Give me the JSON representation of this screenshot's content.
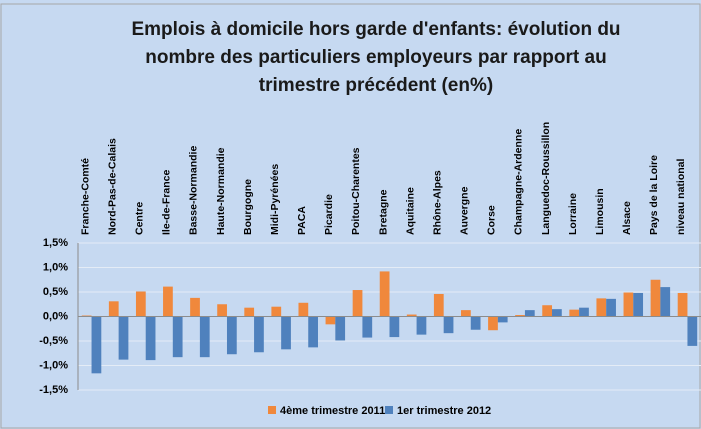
{
  "chart_data": {
    "type": "bar",
    "title": [
      "Emplois à domicile hors garde d'enfants:  évolution du",
      "nombre des particuliers employeurs par rapport au",
      "trimestre précédent (en%)"
    ],
    "categories": [
      "Franche-Comté",
      "Nord-Pas-de-Calais",
      "Centre",
      "Ile-de-France",
      "Basse-Normandie",
      "Haute-Normandie",
      "Bourgogne",
      "Midi-Pyrénées",
      "PACA",
      "Picardie",
      "Poitou-Charentes",
      "Bretagne",
      "Aquitaine",
      "Rhône-Alpes",
      "Auvergne",
      "Corse",
      "Champagne-Ardenne",
      "Languedoc-Roussillon",
      "Lorraine",
      "Limousin",
      "Alsace",
      "Pays de la Loire",
      "niveau national"
    ],
    "series": [
      {
        "name": "4ème trimestre 2011",
        "color": "#f0883c",
        "values": [
          0.02,
          0.31,
          0.51,
          0.61,
          0.38,
          0.25,
          0.18,
          0.2,
          0.28,
          -0.16,
          0.54,
          0.92,
          0.04,
          0.46,
          0.13,
          -0.28,
          0.03,
          0.23,
          0.14,
          0.37,
          0.49,
          0.75,
          0.48
        ]
      },
      {
        "name": "1er trimestre 2012",
        "color": "#4f81bd",
        "values": [
          -1.16,
          -0.88,
          -0.89,
          -0.83,
          -0.83,
          -0.77,
          -0.73,
          -0.67,
          -0.63,
          -0.49,
          -0.43,
          -0.42,
          -0.37,
          -0.34,
          -0.27,
          -0.12,
          0.13,
          0.15,
          0.18,
          0.36,
          0.48,
          0.6,
          -0.6
        ]
      }
    ],
    "ylim": [
      -1.5,
      1.5
    ],
    "yticks": [
      {
        "value": 1.5,
        "label": "1,5%"
      },
      {
        "value": 1,
        "label": "1,0%"
      },
      {
        "value": 0.5,
        "label": "0,5%"
      },
      {
        "value": 0,
        "label": "0,0%"
      },
      {
        "value": -0.5,
        "label": "-0,5%"
      },
      {
        "value": -1,
        "label": "-1,0%"
      },
      {
        "value": -1.5,
        "label": "-1,5%"
      }
    ],
    "grid": true,
    "legend": "bottom"
  }
}
